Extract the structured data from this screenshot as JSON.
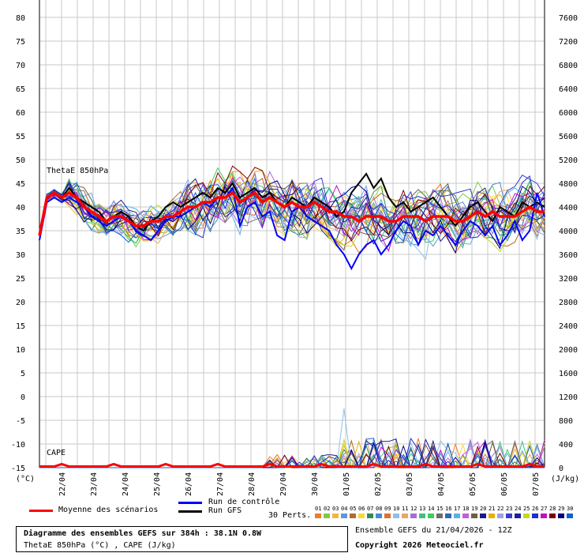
{
  "chart_data": {
    "type": "line",
    "left_axis": {
      "label": "(°C)",
      "ticks": [
        80,
        75,
        70,
        65,
        60,
        55,
        50,
        45,
        40,
        35,
        30,
        25,
        20,
        15,
        10,
        5,
        0,
        -5,
        -10,
        -15
      ],
      "range": [
        -15,
        80
      ]
    },
    "right_axis": {
      "label": "(J/kg)",
      "ticks": [
        7600,
        7200,
        6800,
        6400,
        6000,
        5600,
        5200,
        4800,
        4400,
        4000,
        3600,
        3200,
        2800,
        2400,
        2000,
        1600,
        1200,
        800,
        400,
        0
      ],
      "range": [
        0,
        7600
      ]
    },
    "x_labels": [
      "22/04",
      "23/04",
      "24/04",
      "25/04",
      "26/04",
      "27/04",
      "28/04",
      "29/04",
      "30/04",
      "01/05",
      "02/05",
      "03/05",
      "04/05",
      "05/05",
      "06/05",
      "07/05"
    ],
    "series_labels": {
      "thetae": "ThetaE 850hPa",
      "cape": "CAPE"
    },
    "mean_thetae": [
      34,
      42,
      43,
      42,
      43,
      42,
      40,
      39,
      38,
      37,
      38,
      38,
      37,
      36,
      36,
      37,
      37,
      38,
      38,
      39,
      40,
      40,
      41,
      41,
      42,
      42,
      43,
      41,
      42,
      43,
      41,
      42,
      41,
      40,
      41,
      40,
      40,
      41,
      40,
      39,
      39,
      38,
      38,
      37,
      38,
      38,
      38,
      37,
      37,
      38,
      38,
      38,
      37,
      38,
      38,
      38,
      37,
      37,
      38,
      39,
      38,
      39,
      38,
      38,
      38,
      39,
      40,
      39,
      39
    ],
    "control_thetae": [
      33,
      41,
      42,
      41,
      42,
      41,
      40,
      38,
      37,
      36,
      37,
      38,
      37,
      35,
      34,
      33,
      35,
      37,
      38,
      38,
      39,
      40,
      41,
      40,
      42,
      42,
      44,
      36,
      40,
      41,
      38,
      39,
      34,
      33,
      39,
      40,
      38,
      37,
      36,
      35,
      32,
      30,
      27,
      30,
      32,
      33,
      30,
      32,
      35,
      37,
      36,
      32,
      35,
      34,
      36,
      34,
      32,
      35,
      37,
      36,
      34,
      36,
      32,
      34,
      37,
      33,
      35,
      43,
      38
    ],
    "gfs_thetae": [
      34,
      42,
      43,
      42,
      44,
      42,
      41,
      40,
      39,
      37,
      38,
      39,
      38,
      36,
      35,
      37,
      38,
      40,
      41,
      40,
      41,
      42,
      43,
      42,
      44,
      43,
      45,
      42,
      43,
      44,
      42,
      43,
      41,
      40,
      42,
      41,
      40,
      42,
      41,
      40,
      38,
      39,
      43,
      45,
      47,
      44,
      46,
      42,
      40,
      41,
      39,
      40,
      41,
      42,
      40,
      38,
      36,
      38,
      40,
      41,
      39,
      37,
      40,
      39,
      38,
      41,
      40,
      41,
      40
    ],
    "legend": {
      "mean": "Moyenne des scénarios",
      "control": "Run de contrôle",
      "gfs": "Run GFS",
      "perts": "30 Perts."
    },
    "pert_numbers": [
      "01",
      "02",
      "03",
      "04",
      "05",
      "06",
      "07",
      "08",
      "09",
      "10",
      "11",
      "12",
      "13",
      "14",
      "15",
      "16",
      "17",
      "18",
      "19",
      "20",
      "21",
      "22",
      "23",
      "24",
      "25",
      "26",
      "27",
      "28",
      "29",
      "30"
    ],
    "pert_colors": [
      "#ef7a2a",
      "#7ec850",
      "#f2b63c",
      "#6495d8",
      "#b46a28",
      "#f8d838",
      "#2e8b57",
      "#4a8ad4",
      "#e07030",
      "#8cc0e8",
      "#e8a860",
      "#a86cd0",
      "#40c080",
      "#3ccc60",
      "#6c6c6c",
      "#2a6ab0",
      "#5cb0e8",
      "#c060e0",
      "#706040",
      "#1a1a90",
      "#e8b000",
      "#a0a0e0",
      "#3a3ad0",
      "#202090",
      "#c8d820",
      "#2030d0",
      "#c010c0",
      "#800000",
      "#000080",
      "#1060d0"
    ],
    "title": "Diagramme des ensembles GEFS sur 384h : 38.1N 0.8W",
    "subtitle": "ThetaE 850hPa (°C) , CAPE (J/kg)",
    "run_info": "Ensemble GEFS du 21/04/2026 - 12Z",
    "copyright": "Copyright 2026 Meteociel.fr"
  }
}
